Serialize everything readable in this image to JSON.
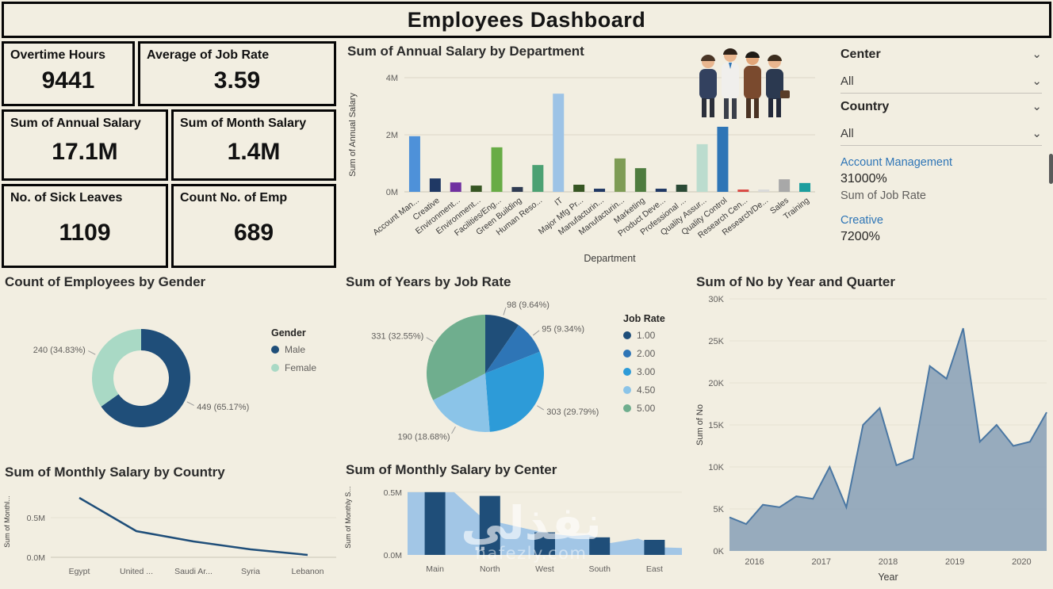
{
  "header": {
    "title": "Employees Dashboard"
  },
  "kpis": [
    {
      "label": "Overtime Hours",
      "value": "9441"
    },
    {
      "label": "Average of Job Rate",
      "value": "3.59"
    },
    {
      "label": "Sum of Annual Salary",
      "value": "17.1M"
    },
    {
      "label": "Sum of Month Salary",
      "value": "1.4M"
    },
    {
      "label": "No. of Sick Leaves",
      "value": "1109"
    },
    {
      "label": "Count No. of Emp",
      "value": "689"
    }
  ],
  "filters": {
    "center_label": "Center",
    "center_value": "All",
    "country_label": "Country",
    "country_value": "All",
    "detail_items": [
      {
        "name": "Account Management",
        "value": "31000%",
        "metric": "Sum of Job Rate"
      },
      {
        "name": "Creative",
        "value": "7200%"
      }
    ]
  },
  "watermark": {
    "text": "نفذلي",
    "domain": "nafezly.com"
  },
  "chart_data": [
    {
      "id": "dept-salary-bar",
      "type": "bar",
      "title": "Sum of Annual Salary by Department",
      "xlabel": "Department",
      "ylabel": "Sum of Annual Salary",
      "ylim": [
        0,
        4000000
      ],
      "yticks": [
        {
          "v": 0,
          "label": "0M"
        },
        {
          "v": 2000000,
          "label": "2M"
        },
        {
          "v": 4000000,
          "label": "4M"
        }
      ],
      "categories": [
        "Account Man...",
        "Creative",
        "Environment...",
        "Environment...",
        "Facilities/Eng...",
        "Green Building",
        "Human Reso...",
        "IT",
        "Major Mfg Pr...",
        "Manufacturin...",
        "Manufacturin...",
        "Marketing",
        "Product Deve...",
        "Professional ...",
        "Quality Assur...",
        "Quality Control",
        "Research Cen...",
        "Research/De...",
        "Sales",
        "Training"
      ],
      "values": [
        1950000,
        470000,
        330000,
        220000,
        1560000,
        170000,
        940000,
        3440000,
        250000,
        110000,
        1170000,
        830000,
        110000,
        250000,
        1670000,
        2280000,
        80000,
        80000,
        440000,
        310000
      ],
      "colors": [
        "#4E91D9",
        "#1F3864",
        "#7030A0",
        "#375623",
        "#68AC46",
        "#2F3B52",
        "#4CA173",
        "#9DC3E6",
        "#375623",
        "#203864",
        "#7E9C55",
        "#4E7C3F",
        "#1F3864",
        "#2A4A35",
        "#BBDCCE",
        "#2E75B6",
        "#D94641",
        "#D9D9D9",
        "#A8A8A8",
        "#1C9E9E"
      ]
    },
    {
      "id": "gender-donut",
      "type": "donut",
      "title": "Count of Employees by Gender",
      "legend_title": "Gender",
      "slices": [
        {
          "label": "Male",
          "value": 449,
          "display": "449 (65.17%)",
          "color": "#1F4E79"
        },
        {
          "label": "Female",
          "value": 240,
          "display": "240 (34.83%)",
          "color": "#A9D9C5"
        }
      ]
    },
    {
      "id": "jobrate-pie",
      "type": "pie",
      "title": "Sum of Years by Job Rate",
      "legend_title": "Job Rate",
      "slices": [
        {
          "label": "1.00",
          "value": 98,
          "display": "98 (9.64%)",
          "color": "#1F4E79"
        },
        {
          "label": "2.00",
          "value": 95,
          "display": "95 (9.34%)",
          "color": "#2E75B6"
        },
        {
          "label": "3.00",
          "value": 303,
          "display": "303 (29.79%)",
          "color": "#2D9BD8"
        },
        {
          "label": "4.50",
          "value": 190,
          "display": "190 (18.68%)",
          "color": "#8BC4E8"
        },
        {
          "label": "5.00",
          "value": 331,
          "display": "331 (32.55%)",
          "color": "#6FAE8E"
        }
      ]
    },
    {
      "id": "no-year-area",
      "type": "area",
      "title": "Sum of No by Year and Quarter",
      "xlabel": "Year",
      "ylabel": "Sum of No",
      "ylim": [
        0,
        30000
      ],
      "yticks": [
        "0K",
        "5K",
        "10K",
        "15K",
        "20K",
        "25K",
        "30K"
      ],
      "x_ticks": [
        "2016",
        "2017",
        "2018",
        "2019",
        "2020"
      ],
      "values": [
        4000,
        3200,
        5500,
        5200,
        6500,
        6200,
        10000,
        5200,
        15000,
        17000,
        10200,
        11000,
        22000,
        20500,
        26500,
        13000,
        15000,
        12500,
        13000,
        16500
      ],
      "fill": "#8FA5BA",
      "line": "#4A77A3"
    },
    {
      "id": "country-line",
      "type": "line",
      "title": "Sum of Monthly Salary by Country",
      "ylabel": "Sum of Monthl...",
      "ylim": [
        0,
        900000
      ],
      "yticks": [
        {
          "v": 0,
          "label": "0.0M"
        },
        {
          "v": 500000,
          "label": "0.5M"
        }
      ],
      "categories": [
        "Egypt",
        "United ...",
        "Saudi Ar...",
        "Syria",
        "Lebanon"
      ],
      "values": [
        750000,
        330000,
        200000,
        100000,
        30000
      ],
      "line": "#1F4E79"
    },
    {
      "id": "center-area-bars",
      "type": "area-bars",
      "title": "Sum of Monthly Salary by Center",
      "ylabel": "Sum of Monthly S...",
      "ylim": [
        0,
        600000
      ],
      "yticks": [
        {
          "v": 0,
          "label": "0.0M"
        },
        {
          "v": 500000,
          "label": "0.5M"
        }
      ],
      "categories": [
        "Main",
        "North",
        "West",
        "South",
        "East"
      ],
      "bar_values": [
        500000,
        470000,
        180000,
        140000,
        120000
      ],
      "area_points": [
        [
          0,
          500000
        ],
        [
          0.17,
          500000
        ],
        [
          0.26,
          320000
        ],
        [
          0.34,
          255000
        ],
        [
          0.44,
          205000
        ],
        [
          0.52,
          170000
        ],
        [
          0.6,
          150000
        ],
        [
          0.66,
          160000
        ],
        [
          0.74,
          95000
        ],
        [
          0.84,
          130000
        ],
        [
          0.93,
          60000
        ],
        [
          1,
          55000
        ]
      ],
      "bar_color": "#1F4E79",
      "area_color": "#9DC3E6"
    }
  ]
}
